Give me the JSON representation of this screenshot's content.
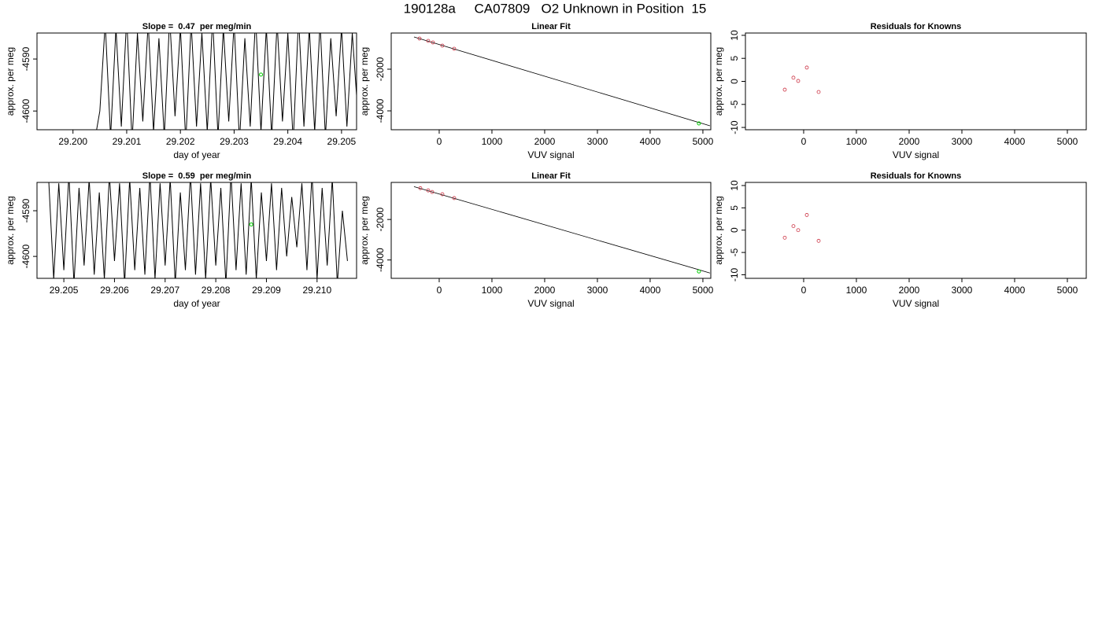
{
  "title": "190128a     CA07809   O2 Unknown in Position  15",
  "chart_data": [
    {
      "type": "line",
      "title": "Slope =  0.47  per meg/min",
      "xlabel": "day of year",
      "ylabel": "approx. per meg",
      "color": "#000000",
      "x": [
        29.2004,
        29.2005,
        29.2006,
        29.2007,
        29.2008,
        29.2009,
        29.201,
        29.2011,
        29.2012,
        29.2013,
        29.2014,
        29.2015,
        29.2016,
        29.2017,
        29.2018,
        29.2019,
        29.202,
        29.2021,
        29.2022,
        29.2023,
        29.2024,
        29.2025,
        29.2026,
        29.2027,
        29.2028,
        29.2029,
        29.203,
        29.2031,
        29.2032,
        29.2033,
        29.2034,
        29.2035,
        29.2036,
        29.2037,
        29.2038,
        29.2039,
        29.204,
        29.2041,
        29.2042,
        29.2043,
        29.2044,
        29.2045,
        29.2046,
        29.2047,
        29.2048,
        29.2049,
        29.205,
        29.2051,
        29.2052,
        29.2053,
        29.2054,
        29.2055
      ],
      "values": [
        -4606,
        -4600,
        -4583,
        -4605,
        -4584,
        -4603,
        -4582,
        -4606,
        -4585,
        -4602,
        -4583,
        -4604,
        -4586,
        -4605,
        -4582,
        -4601,
        -4584,
        -4606,
        -4583,
        -4603,
        -4585,
        -4604,
        -4582,
        -4605,
        -4584,
        -4602,
        -4583,
        -4606,
        -4586,
        -4603,
        -4582,
        -4604,
        -4584,
        -4605,
        -4583,
        -4602,
        -4585,
        -4606,
        -4582,
        -4603,
        -4584,
        -4604,
        -4583,
        -4605,
        -4586,
        -4601,
        -4584,
        -4603,
        -4585,
        -4600,
        -4587,
        -4598
      ],
      "highlight": {
        "x": 29.2035,
        "y": -4593,
        "color": "#00cc00"
      },
      "xlim": [
        29.19933,
        29.20528
      ],
      "ylim": [
        -4603.6,
        -4585
      ],
      "xticks": [
        {
          "value": 29.2,
          "label": "29.200"
        },
        29.201,
        29.202,
        29.203,
        29.204,
        29.205
      ],
      "yticks": [
        -4590,
        -4600
      ]
    },
    {
      "type": "scatter",
      "title": "Linear Fit",
      "xlabel": "VUV signal",
      "ylabel": "approx. per meg",
      "color": "#cc3344",
      "x": [
        -373,
        -209,
        -119,
        60,
        284
      ],
      "values": [
        -528,
        -641,
        -717,
        -868,
        -1019
      ],
      "fit_line": {
        "x": [
          -478,
          5134
        ],
        "values": [
          -453,
          -4717
        ],
        "color": "#000000"
      },
      "highlight": {
        "x": 4925,
        "y": -4604,
        "color": "#00cc00"
      },
      "xlim": [
        -910,
        5150
      ],
      "ylim": [
        -4906,
        -264
      ],
      "xticks": [
        0,
        1000,
        2000,
        3000,
        4000,
        5000
      ],
      "yticks": [
        -2000,
        -4000
      ]
    },
    {
      "type": "scatter",
      "title": "Residuals for Knowns",
      "xlabel": "VUV signal",
      "ylabel": "approx. per meg",
      "color": "#cc3344",
      "x": [
        -358,
        -194,
        -104,
        60,
        284
      ],
      "values": [
        -1.8,
        0.8,
        0.1,
        3.0,
        -2.3
      ],
      "xlim": [
        -1104,
        5358
      ],
      "ylim": [
        -10.5,
        10.5
      ],
      "xticks": [
        0,
        1000,
        2000,
        3000,
        4000,
        5000
      ],
      "yticks": [
        10,
        5,
        0,
        -5,
        -10
      ]
    },
    {
      "type": "line",
      "title": "Slope =  0.59  per meg/min",
      "xlabel": "day of year",
      "ylabel": "approx. per meg",
      "color": "#000000",
      "x": [
        29.2047,
        29.2048,
        29.2049,
        29.205,
        29.2051,
        29.2052,
        29.2053,
        29.2054,
        29.2055,
        29.2056,
        29.2057,
        29.2058,
        29.2059,
        29.206,
        29.2061,
        29.2062,
        29.2063,
        29.2064,
        29.2065,
        29.2066,
        29.2067,
        29.2068,
        29.2069,
        29.207,
        29.2071,
        29.2072,
        29.2073,
        29.2074,
        29.2075,
        29.2076,
        29.2077,
        29.2078,
        29.2079,
        29.208,
        29.2081,
        29.2082,
        29.2083,
        29.2084,
        29.2085,
        29.2086,
        29.2087,
        29.2088,
        29.2089,
        29.209,
        29.2091,
        29.2092,
        29.2093,
        29.2094,
        29.2095,
        29.2096,
        29.2097,
        29.2098,
        29.2099,
        29.21,
        29.2101,
        29.2102,
        29.2103,
        29.2104,
        29.2105,
        29.2106
      ],
      "values": [
        -4583,
        -4605,
        -4584,
        -4603,
        -4582,
        -4606,
        -4585,
        -4602,
        -4583,
        -4604,
        -4586,
        -4605,
        -4582,
        -4601,
        -4584,
        -4606,
        -4583,
        -4603,
        -4585,
        -4604,
        -4582,
        -4605,
        -4584,
        -4602,
        -4583,
        -4606,
        -4586,
        -4603,
        -4582,
        -4604,
        -4584,
        -4605,
        -4583,
        -4602,
        -4585,
        -4606,
        -4582,
        -4603,
        -4584,
        -4604,
        -4583,
        -4605,
        -4586,
        -4601,
        -4584,
        -4603,
        -4585,
        -4600,
        -4587,
        -4598,
        -4584,
        -4603,
        -4582,
        -4605,
        -4585,
        -4602,
        -4583,
        -4606,
        -4590,
        -4601
      ],
      "highlight": {
        "x": 29.2087,
        "y": -4593,
        "color": "#00cc00"
      },
      "xlim": [
        29.20447,
        29.21078
      ],
      "ylim": [
        -4604.8,
        -4583.8
      ],
      "xticks": [
        29.205,
        29.206,
        29.207,
        29.208,
        29.209,
        {
          "value": 29.21,
          "label": "29.210"
        }
      ],
      "yticks": [
        -4590,
        -4600
      ]
    },
    {
      "type": "scatter",
      "title": "Linear Fit",
      "xlabel": "VUV signal",
      "ylabel": "approx. per meg",
      "color": "#cc3344",
      "x": [
        -358,
        -209,
        -134,
        60,
        284
      ],
      "values": [
        -453,
        -566,
        -642,
        -755,
        -943
      ],
      "fit_line": {
        "x": [
          -478,
          5134
        ],
        "values": [
          -378,
          -4642
        ],
        "color": "#000000"
      },
      "highlight": {
        "x": 4925,
        "y": -4566,
        "color": "#00cc00"
      },
      "xlim": [
        -910,
        5150
      ],
      "ylim": [
        -4906,
        -170
      ],
      "xticks": [
        0,
        1000,
        2000,
        3000,
        4000,
        5000
      ],
      "yticks": [
        -2000,
        -4000
      ]
    },
    {
      "type": "scatter",
      "title": "Residuals for Knowns",
      "xlabel": "VUV signal",
      "ylabel": "approx. per meg",
      "color": "#cc3344",
      "x": [
        -358,
        -194,
        -104,
        60,
        284
      ],
      "values": [
        -1.7,
        0.9,
        0.0,
        3.4,
        -2.4
      ],
      "xlim": [
        -1104,
        5358
      ],
      "ylim": [
        -10.8,
        10.7
      ],
      "xticks": [
        0,
        1000,
        2000,
        3000,
        4000,
        5000
      ],
      "yticks": [
        10,
        5,
        0,
        -5,
        -10
      ]
    }
  ]
}
